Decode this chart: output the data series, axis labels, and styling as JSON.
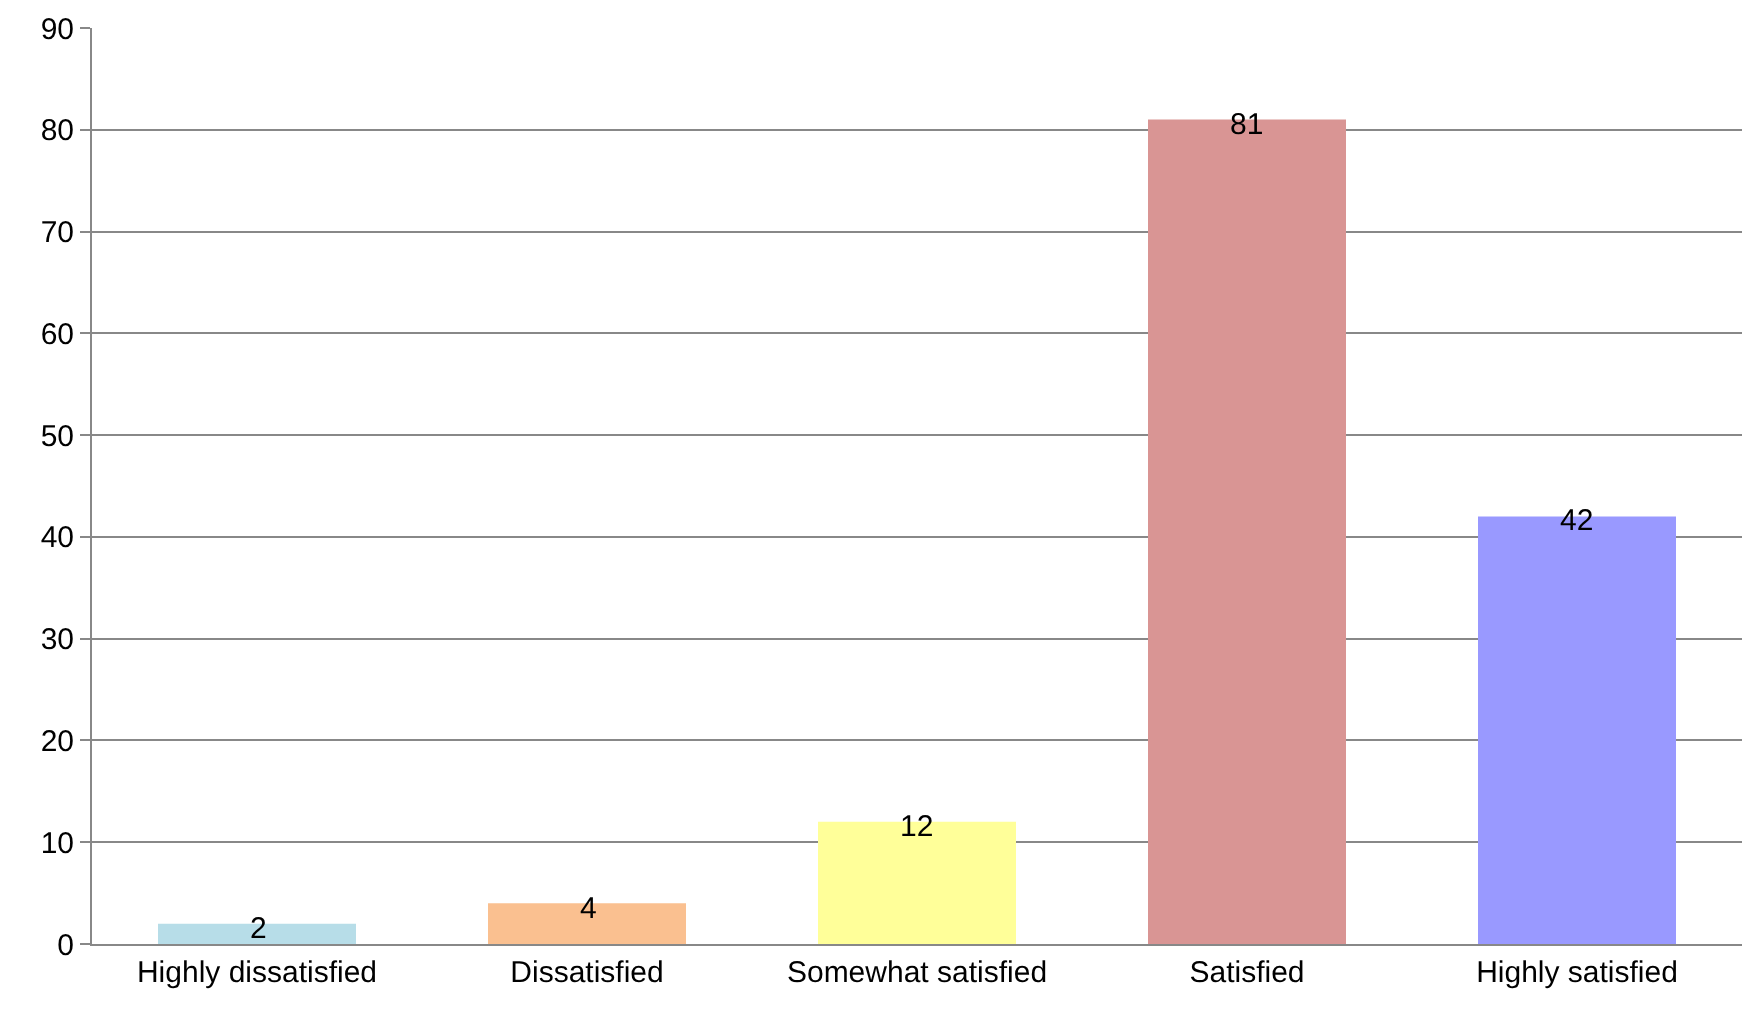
{
  "chart_data": {
    "type": "bar",
    "categories": [
      "Highly dissatisfied",
      "Dissatisfied",
      "Somewhat satisfied",
      "Satisfied",
      "Highly satisfied"
    ],
    "values": [
      2,
      4,
      12,
      81,
      42
    ],
    "colors": [
      "#b7dde8",
      "#fac090",
      "#ffff99",
      "#d99594",
      "#9999ff"
    ],
    "ylim": [
      0,
      90
    ],
    "yticks": [
      0,
      10,
      20,
      30,
      40,
      50,
      60,
      70,
      80,
      90
    ],
    "grid": "y",
    "data_labels": true
  }
}
